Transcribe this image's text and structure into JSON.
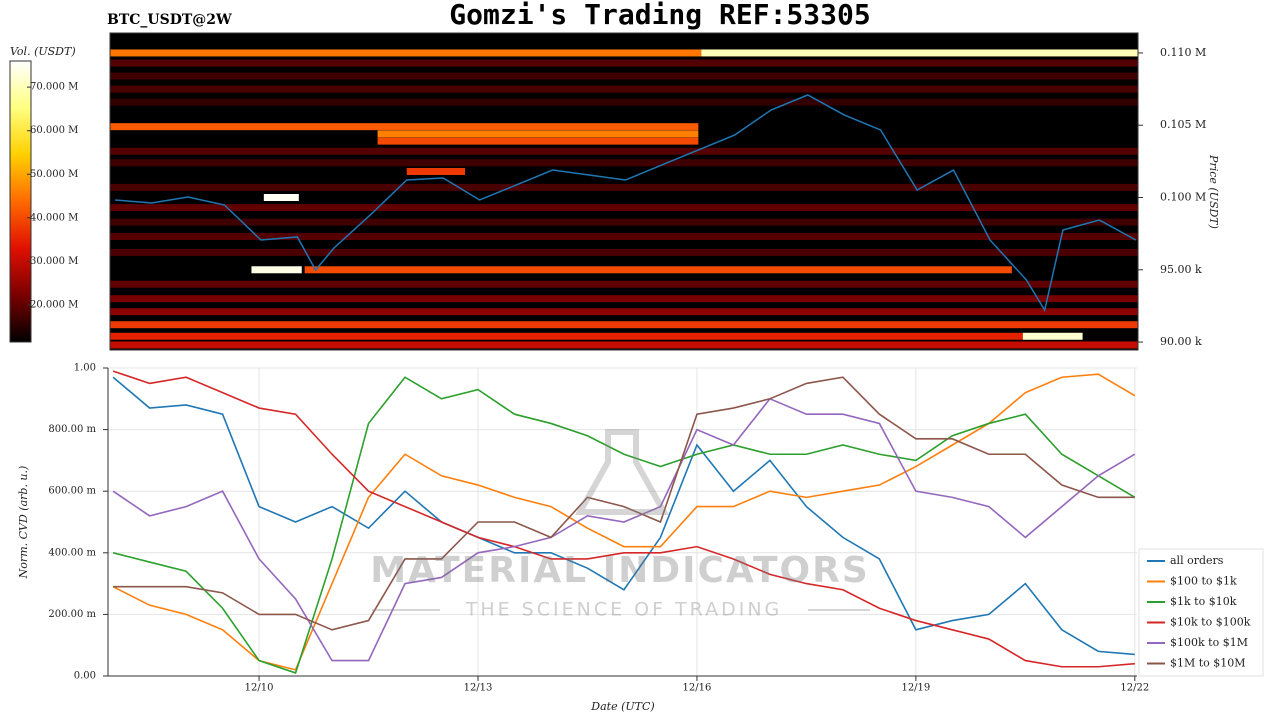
{
  "chart_data": [
    {
      "type": "heatmap",
      "title": "Gomzi's Trading REF:53305",
      "subtitle": "BTC_USDT@2W",
      "y_label": "Price (USDT)",
      "colorbar_label": "Vol. (USDT)",
      "xlim": [
        7.93,
        22.03
      ],
      "ylim": [
        89450,
        111380
      ],
      "yticks": [
        {
          "value": 90000,
          "label": "90.00 k"
        },
        {
          "value": 95000,
          "label": "95.00 k"
        },
        {
          "value": 100000,
          "label": "0.100 M"
        },
        {
          "value": 105000,
          "label": "0.105 M"
        },
        {
          "value": 110000,
          "label": "0.110 M"
        }
      ],
      "colorlim": [
        11500000,
        76000000
      ],
      "colorticks": [
        {
          "value": 20000000,
          "label": "20.000 M"
        },
        {
          "value": 30000000,
          "label": "30.000 M"
        },
        {
          "value": 40000000,
          "label": "40.000 M"
        },
        {
          "value": 50000000,
          "label": "50.000 M"
        },
        {
          "value": 60000000,
          "label": "60.000 M"
        },
        {
          "value": 70000000,
          "label": "70.000 M"
        }
      ],
      "colormap": [
        "#000000",
        "#7a0000",
        "#e01000",
        "#ff6a00",
        "#ffd000",
        "#ffff80",
        "#ffffff"
      ],
      "bands": [
        {
          "price": 109300,
          "x0": 7.93,
          "x1": 22.03,
          "volume": 19000000
        },
        {
          "price": 108400,
          "x0": 7.93,
          "x1": 22.03,
          "volume": 17000000
        },
        {
          "price": 107500,
          "x0": 7.93,
          "x1": 22.03,
          "volume": 18000000
        },
        {
          "price": 106600,
          "x0": 7.93,
          "x1": 22.03,
          "volume": 16000000
        },
        {
          "price": 103200,
          "x0": 7.93,
          "x1": 22.03,
          "volume": 19000000
        },
        {
          "price": 102400,
          "x0": 7.93,
          "x1": 22.03,
          "volume": 17000000
        },
        {
          "price": 100700,
          "x0": 7.93,
          "x1": 22.03,
          "volume": 18000000
        },
        {
          "price": 99300,
          "x0": 7.93,
          "x1": 22.03,
          "volume": 20000000
        },
        {
          "price": 98300,
          "x0": 7.93,
          "x1": 22.03,
          "volume": 17000000
        },
        {
          "price": 97300,
          "x0": 7.93,
          "x1": 22.03,
          "volume": 19000000
        },
        {
          "price": 96200,
          "x0": 7.93,
          "x1": 22.03,
          "volume": 18000000
        },
        {
          "price": 94000,
          "x0": 7.93,
          "x1": 22.03,
          "volume": 20000000
        },
        {
          "price": 93000,
          "x0": 7.93,
          "x1": 22.03,
          "volume": 22000000
        },
        {
          "price": 92100,
          "x0": 7.93,
          "x1": 22.03,
          "volume": 24000000
        },
        {
          "price": 110000,
          "x0": 7.93,
          "x1": 16.04,
          "volume": 45000000
        },
        {
          "price": 110000,
          "x0": 16.04,
          "x1": 22.03,
          "volume": 70000000
        },
        {
          "price": 104900,
          "x0": 7.93,
          "x1": 16.0,
          "volume": 42000000
        },
        {
          "price": 104400,
          "x0": 11.6,
          "x1": 16.0,
          "volume": 46000000
        },
        {
          "price": 103900,
          "x0": 11.6,
          "x1": 16.0,
          "volume": 40000000
        },
        {
          "price": 101800,
          "x0": 12.0,
          "x1": 12.8,
          "volume": 38000000
        },
        {
          "price": 100000,
          "x0": 10.04,
          "x1": 10.52,
          "volume": 75000000
        },
        {
          "price": 95000,
          "x0": 10.6,
          "x1": 20.3,
          "volume": 40000000
        },
        {
          "price": 95000,
          "x0": 9.87,
          "x1": 10.56,
          "volume": 74000000
        },
        {
          "price": 91200,
          "x0": 7.93,
          "x1": 22.03,
          "volume": 38000000
        },
        {
          "price": 90400,
          "x0": 7.93,
          "x1": 20.45,
          "volume": 35000000
        },
        {
          "price": 90400,
          "x0": 20.45,
          "x1": 21.27,
          "volume": 72000000
        },
        {
          "price": 89800,
          "x0": 7.93,
          "x1": 22.03,
          "volume": 30000000
        }
      ],
      "price_line": {
        "color": "#1f77b4",
        "x": [
          8.0,
          8.5,
          9.0,
          9.5,
          10.0,
          10.5,
          10.75,
          11.0,
          11.5,
          12.0,
          12.5,
          13.0,
          13.5,
          14.0,
          14.5,
          15.0,
          15.5,
          16.0,
          16.5,
          17.0,
          17.5,
          18.0,
          18.5,
          19.0,
          19.5,
          20.0,
          20.5,
          20.75,
          21.0,
          21.5,
          22.0
        ],
        "values": [
          99830,
          99620,
          100030,
          99480,
          97060,
          97270,
          94980,
          96500,
          98790,
          101210,
          101350,
          99830,
          100860,
          101900,
          101560,
          101210,
          102250,
          103290,
          104330,
          106060,
          107090,
          105710,
          104670,
          100520,
          101900,
          97060,
          94290,
          92210,
          97750,
          98440,
          97060
        ]
      }
    },
    {
      "type": "line",
      "y_label": "Norm. CVD (arb. u.)",
      "x_label": "Date (UTC)",
      "xlim": [
        7.93,
        22.03
      ],
      "ylim": [
        0,
        1
      ],
      "grid": true,
      "legend": "lower right",
      "xticks": [
        {
          "value": 10,
          "label": "12/10"
        },
        {
          "value": 13,
          "label": "12/13"
        },
        {
          "value": 16,
          "label": "12/16"
        },
        {
          "value": 19,
          "label": "12/19"
        },
        {
          "value": 22,
          "label": "12/22"
        }
      ],
      "yticks": [
        {
          "value": 0,
          "label": "0.00"
        },
        {
          "value": 0.2,
          "label": "200.00 m"
        },
        {
          "value": 0.4,
          "label": "400.00 m"
        },
        {
          "value": 0.6,
          "label": "600.00 m"
        },
        {
          "value": 0.8,
          "label": "800.00 m"
        },
        {
          "value": 1,
          "label": "1.00"
        }
      ],
      "x": [
        8.0,
        8.5,
        9.0,
        9.5,
        10.0,
        10.5,
        11.0,
        11.5,
        12.0,
        12.5,
        13.0,
        13.5,
        14.0,
        14.5,
        15.0,
        15.5,
        16.0,
        16.5,
        17.0,
        17.5,
        18.0,
        18.5,
        19.0,
        19.5,
        20.0,
        20.5,
        21.0,
        21.5,
        22.0
      ],
      "series": [
        {
          "name": "all orders",
          "color": "#1f77b4",
          "values": [
            0.97,
            0.87,
            0.88,
            0.85,
            0.55,
            0.5,
            0.55,
            0.48,
            0.6,
            0.5,
            0.45,
            0.4,
            0.4,
            0.35,
            0.28,
            0.45,
            0.75,
            0.6,
            0.7,
            0.55,
            0.45,
            0.38,
            0.15,
            0.18,
            0.2,
            0.3,
            0.15,
            0.08,
            0.07
          ]
        },
        {
          "name": "$100 to $1k",
          "color": "#ff7f0e",
          "values": [
            0.29,
            0.23,
            0.2,
            0.15,
            0.05,
            0.02,
            0.3,
            0.58,
            0.72,
            0.65,
            0.62,
            0.58,
            0.55,
            0.48,
            0.42,
            0.42,
            0.55,
            0.55,
            0.6,
            0.58,
            0.6,
            0.62,
            0.68,
            0.75,
            0.82,
            0.92,
            0.97,
            0.98,
            0.91
          ]
        },
        {
          "name": "$1k to $10k",
          "color": "#2ca02c",
          "values": [
            0.4,
            0.37,
            0.34,
            0.22,
            0.05,
            0.01,
            0.38,
            0.82,
            0.97,
            0.9,
            0.93,
            0.85,
            0.82,
            0.78,
            0.72,
            0.68,
            0.72,
            0.75,
            0.72,
            0.72,
            0.75,
            0.72,
            0.7,
            0.78,
            0.82,
            0.85,
            0.72,
            0.65,
            0.58
          ]
        },
        {
          "name": "$10k to $100k",
          "color": "#d62728",
          "values": [
            0.99,
            0.95,
            0.97,
            0.92,
            0.87,
            0.85,
            0.72,
            0.6,
            0.55,
            0.5,
            0.45,
            0.42,
            0.38,
            0.38,
            0.4,
            0.4,
            0.42,
            0.38,
            0.33,
            0.3,
            0.28,
            0.22,
            0.18,
            0.15,
            0.12,
            0.05,
            0.03,
            0.03,
            0.04
          ]
        },
        {
          "name": "$100k to $1M",
          "color": "#9467bd",
          "values": [
            0.6,
            0.52,
            0.55,
            0.6,
            0.38,
            0.25,
            0.05,
            0.05,
            0.3,
            0.32,
            0.4,
            0.42,
            0.45,
            0.52,
            0.5,
            0.55,
            0.8,
            0.75,
            0.9,
            0.85,
            0.85,
            0.82,
            0.6,
            0.58,
            0.55,
            0.45,
            0.55,
            0.65,
            0.72
          ]
        },
        {
          "name": "$1M to $10M",
          "color": "#8c564b",
          "values": [
            0.29,
            0.29,
            0.29,
            0.27,
            0.2,
            0.2,
            0.15,
            0.18,
            0.38,
            0.38,
            0.5,
            0.5,
            0.45,
            0.58,
            0.55,
            0.5,
            0.85,
            0.87,
            0.9,
            0.95,
            0.97,
            0.85,
            0.77,
            0.77,
            0.72,
            0.72,
            0.62,
            0.58,
            0.58
          ]
        }
      ]
    }
  ],
  "watermark": {
    "title": "MATERIAL INDICATORS",
    "subtitle": "THE SCIENCE OF TRADING"
  }
}
